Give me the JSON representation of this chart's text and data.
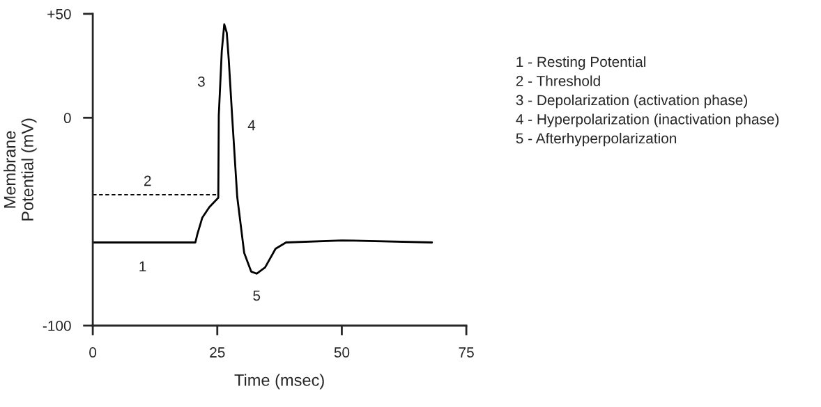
{
  "chart_data": {
    "type": "line",
    "xlabel": "Time (msec)",
    "ylabel": "Membrane\nPotential (mV)",
    "xlim": [
      0,
      75
    ],
    "xticks": [
      0,
      25,
      50,
      75
    ],
    "ylim": [
      -100,
      50
    ],
    "yticks": [
      {
        "value": 50,
        "label": "+50"
      },
      0,
      -100
    ],
    "grid": false,
    "legend": false,
    "marker": "none",
    "series": [
      {
        "color": "#000000",
        "line_style": "solid",
        "x": [
          0,
          20.6,
          21,
          22,
          23.4,
          25.2,
          25.3,
          25.9,
          26.4,
          26.9,
          27.3,
          28,
          29,
          30.4,
          31.8,
          32.9,
          34.6,
          36.7,
          38.8,
          50,
          68.1
        ],
        "values": [
          -60,
          -60,
          -56,
          -48,
          -43,
          -38.5,
          1,
          32,
          45,
          41,
          28,
          0,
          -38,
          -65,
          -74,
          -75,
          -72,
          -63,
          -60,
          -59,
          -60
        ]
      },
      {
        "color": "#000000",
        "line_style": "dashed",
        "x": [
          0,
          25.2
        ],
        "values": [
          -37,
          -37
        ]
      }
    ],
    "annotations": [
      {
        "text": "1",
        "x": 10,
        "y": -60
      },
      {
        "text": "2",
        "x": 11,
        "y": -37
      },
      {
        "text": "3",
        "x": 25.3,
        "y": 1
      },
      {
        "text": "4",
        "x": 28,
        "y": 0
      },
      {
        "text": "5",
        "x": 32.9,
        "y": -75
      },
      "1 - Resting Potential",
      "2 - Threshold",
      "3 - Depolarization (activation phase)",
      "4 - Hyperpolarization (inactivation phase)",
      "5 - Afterhyperpolarization"
    ]
  }
}
